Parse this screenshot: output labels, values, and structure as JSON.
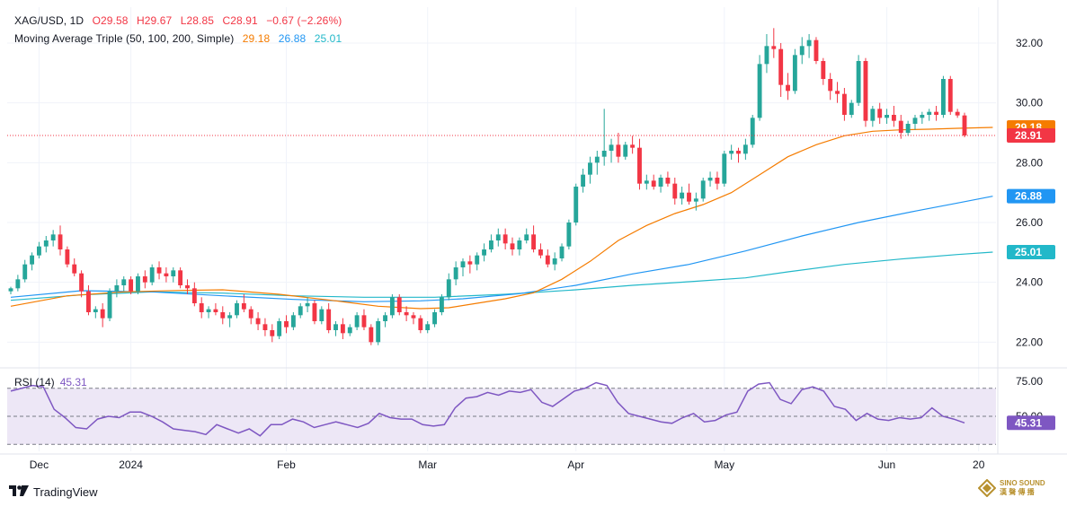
{
  "header": {
    "symbol": "XAG/USD, 1D",
    "open": "O29.58",
    "high": "H29.67",
    "low": "L28.85",
    "close": "C28.91",
    "change": "−0.67 (−2.26%)",
    "ma_title": "Moving Average Triple (50, 100, 200, Simple)",
    "ma50_value": "29.18",
    "ma100_value": "26.88",
    "ma200_value": "25.01"
  },
  "rsi": {
    "label": "RSI (14)",
    "value": "45.31"
  },
  "footer": {
    "brand": "TradingView",
    "watermark_line1": "SINO SOUND",
    "watermark_line2": "漢 聲 傳 播"
  },
  "colors": {
    "up": "#26a69a",
    "down": "#f23645",
    "ma50": "#f57c00",
    "ma100": "#2196f3",
    "ma200": "#22b8c9",
    "rsi": "#7e57c2",
    "rsi_band": "#ede7f6",
    "grid": "#f0f3fa",
    "text": "#131722"
  },
  "chart_data": {
    "type": "candlestick",
    "price_axis_ticks": [
      "32.00",
      "30.00",
      "28.00",
      "26.00",
      "24.00",
      "22.00"
    ],
    "ylim": [
      21.2,
      33.2
    ],
    "time_axis_labels": [
      {
        "label": "Dec",
        "index": 4
      },
      {
        "label": "2024",
        "index": 17
      },
      {
        "label": "Feb",
        "index": 39
      },
      {
        "label": "Mar",
        "index": 59
      },
      {
        "label": "Apr",
        "index": 80
      },
      {
        "label": "May",
        "index": 101
      },
      {
        "label": "Jun",
        "index": 124
      },
      {
        "label": "20",
        "index": 137
      }
    ],
    "price_badges": [
      {
        "name": "ma50",
        "value": 29.18,
        "label": "29.18"
      },
      {
        "name": "last",
        "value": 28.91,
        "label": "28.91"
      },
      {
        "name": "ma100",
        "value": 26.88,
        "label": "26.88"
      },
      {
        "name": "ma200",
        "value": 25.01,
        "label": "25.01"
      }
    ],
    "last_price": 28.91,
    "candles": [
      [
        23.7,
        23.85,
        23.6,
        23.8
      ],
      [
        23.8,
        24.25,
        23.7,
        24.1
      ],
      [
        24.1,
        24.75,
        24.0,
        24.6
      ],
      [
        24.6,
        25.0,
        24.4,
        24.9
      ],
      [
        24.9,
        25.35,
        24.8,
        25.2
      ],
      [
        25.2,
        25.55,
        25.0,
        25.4
      ],
      [
        25.4,
        25.75,
        25.2,
        25.6
      ],
      [
        25.6,
        25.9,
        24.9,
        25.1
      ],
      [
        25.1,
        25.2,
        24.5,
        24.6
      ],
      [
        24.6,
        24.8,
        24.2,
        24.3
      ],
      [
        24.3,
        24.4,
        23.5,
        23.7
      ],
      [
        23.7,
        23.9,
        22.9,
        23.0
      ],
      [
        23.0,
        23.2,
        22.8,
        23.1
      ],
      [
        23.1,
        23.3,
        22.5,
        22.8
      ],
      [
        22.8,
        23.8,
        22.7,
        23.7
      ],
      [
        23.7,
        24.1,
        23.5,
        23.9
      ],
      [
        23.9,
        24.2,
        23.7,
        24.1
      ],
      [
        24.1,
        24.2,
        23.6,
        23.7
      ],
      [
        23.7,
        24.3,
        23.6,
        24.2
      ],
      [
        24.2,
        24.4,
        23.8,
        24.0
      ],
      [
        24.0,
        24.6,
        23.9,
        24.5
      ],
      [
        24.5,
        24.7,
        24.1,
        24.3
      ],
      [
        24.3,
        24.5,
        24.0,
        24.2
      ],
      [
        24.2,
        24.5,
        24.0,
        24.4
      ],
      [
        24.4,
        24.5,
        23.8,
        23.9
      ],
      [
        23.9,
        24.1,
        23.6,
        23.8
      ],
      [
        23.8,
        24.0,
        23.2,
        23.3
      ],
      [
        23.3,
        23.5,
        22.8,
        23.0
      ],
      [
        23.0,
        23.2,
        22.8,
        23.1
      ],
      [
        23.1,
        23.3,
        22.9,
        23.0
      ],
      [
        23.0,
        23.2,
        22.6,
        22.8
      ],
      [
        22.8,
        23.0,
        22.5,
        22.9
      ],
      [
        22.9,
        23.4,
        22.8,
        23.3
      ],
      [
        23.3,
        23.6,
        23.0,
        23.1
      ],
      [
        23.1,
        23.2,
        22.6,
        22.8
      ],
      [
        22.8,
        23.0,
        22.4,
        22.6
      ],
      [
        22.6,
        22.8,
        22.2,
        22.4
      ],
      [
        22.4,
        22.6,
        22.0,
        22.2
      ],
      [
        22.2,
        22.8,
        22.1,
        22.7
      ],
      [
        22.7,
        22.9,
        22.3,
        22.5
      ],
      [
        22.5,
        23.0,
        22.4,
        22.9
      ],
      [
        22.9,
        23.3,
        22.8,
        23.2
      ],
      [
        23.2,
        23.5,
        23.0,
        23.3
      ],
      [
        23.3,
        23.4,
        22.6,
        22.7
      ],
      [
        22.7,
        23.2,
        22.6,
        23.1
      ],
      [
        23.1,
        23.3,
        22.3,
        22.4
      ],
      [
        22.4,
        22.7,
        22.2,
        22.6
      ],
      [
        22.6,
        22.8,
        22.1,
        22.3
      ],
      [
        22.3,
        22.6,
        22.2,
        22.5
      ],
      [
        22.5,
        23.0,
        22.4,
        22.9
      ],
      [
        22.9,
        23.1,
        22.4,
        22.5
      ],
      [
        22.5,
        22.6,
        21.9,
        22.0
      ],
      [
        22.0,
        22.8,
        21.9,
        22.7
      ],
      [
        22.7,
        23.0,
        22.5,
        22.9
      ],
      [
        22.9,
        23.6,
        22.8,
        23.5
      ],
      [
        23.5,
        23.6,
        22.9,
        23.0
      ],
      [
        23.0,
        23.2,
        22.7,
        22.9
      ],
      [
        22.9,
        23.0,
        22.6,
        22.8
      ],
      [
        22.8,
        22.9,
        22.3,
        22.4
      ],
      [
        22.4,
        22.7,
        22.3,
        22.6
      ],
      [
        22.6,
        23.1,
        22.5,
        23.0
      ],
      [
        23.0,
        23.6,
        22.9,
        23.5
      ],
      [
        23.5,
        24.3,
        23.4,
        24.1
      ],
      [
        24.1,
        24.7,
        23.9,
        24.5
      ],
      [
        24.5,
        24.8,
        24.2,
        24.7
      ],
      [
        24.7,
        24.9,
        24.3,
        24.6
      ],
      [
        24.6,
        25.0,
        24.4,
        24.9
      ],
      [
        24.9,
        25.3,
        24.7,
        25.1
      ],
      [
        25.1,
        25.6,
        25.0,
        25.4
      ],
      [
        25.4,
        25.8,
        25.2,
        25.6
      ],
      [
        25.6,
        25.8,
        25.1,
        25.3
      ],
      [
        25.3,
        25.5,
        24.9,
        25.1
      ],
      [
        25.1,
        25.5,
        24.9,
        25.4
      ],
      [
        25.4,
        25.8,
        25.3,
        25.6
      ],
      [
        25.6,
        25.9,
        25.0,
        25.1
      ],
      [
        25.1,
        25.3,
        24.8,
        24.9
      ],
      [
        24.9,
        25.1,
        24.5,
        24.6
      ],
      [
        24.6,
        25.0,
        24.4,
        24.8
      ],
      [
        24.8,
        25.3,
        24.7,
        25.2
      ],
      [
        25.2,
        26.1,
        25.1,
        26.0
      ],
      [
        26.0,
        27.3,
        25.9,
        27.2
      ],
      [
        27.2,
        27.8,
        27.0,
        27.6
      ],
      [
        27.6,
        28.2,
        27.3,
        28.0
      ],
      [
        28.0,
        28.4,
        27.6,
        28.2
      ],
      [
        28.2,
        29.8,
        27.9,
        28.4
      ],
      [
        28.4,
        28.8,
        28.0,
        28.6
      ],
      [
        28.6,
        29.0,
        28.0,
        28.2
      ],
      [
        28.2,
        28.7,
        28.1,
        28.6
      ],
      [
        28.6,
        28.9,
        28.3,
        28.5
      ],
      [
        28.5,
        28.8,
        27.1,
        27.3
      ],
      [
        27.3,
        27.6,
        27.1,
        27.4
      ],
      [
        27.4,
        27.6,
        27.1,
        27.2
      ],
      [
        27.2,
        27.6,
        27.0,
        27.5
      ],
      [
        27.5,
        27.7,
        27.2,
        27.3
      ],
      [
        27.3,
        27.5,
        26.6,
        26.8
      ],
      [
        26.8,
        27.2,
        26.6,
        27.0
      ],
      [
        27.0,
        27.3,
        26.6,
        26.7
      ],
      [
        26.7,
        27.0,
        26.4,
        26.8
      ],
      [
        26.8,
        27.5,
        26.7,
        27.4
      ],
      [
        27.4,
        27.7,
        27.2,
        27.5
      ],
      [
        27.5,
        27.7,
        27.1,
        27.3
      ],
      [
        27.3,
        28.4,
        27.2,
        28.3
      ],
      [
        28.3,
        28.6,
        28.1,
        28.4
      ],
      [
        28.4,
        28.5,
        28.0,
        28.3
      ],
      [
        28.3,
        28.8,
        28.1,
        28.6
      ],
      [
        28.6,
        29.6,
        28.5,
        29.5
      ],
      [
        29.5,
        31.6,
        29.4,
        31.3
      ],
      [
        31.3,
        32.3,
        31.0,
        31.9
      ],
      [
        31.9,
        32.5,
        31.5,
        31.8
      ],
      [
        31.8,
        32.0,
        30.2,
        30.6
      ],
      [
        30.6,
        31.0,
        30.1,
        30.4
      ],
      [
        30.4,
        31.8,
        30.3,
        31.6
      ],
      [
        31.6,
        32.2,
        31.3,
        31.9
      ],
      [
        31.9,
        32.3,
        31.5,
        32.1
      ],
      [
        32.1,
        32.2,
        31.3,
        31.4
      ],
      [
        31.4,
        31.5,
        30.6,
        30.8
      ],
      [
        30.8,
        31.0,
        30.1,
        30.4
      ],
      [
        30.4,
        30.7,
        30.0,
        30.3
      ],
      [
        30.3,
        30.5,
        29.4,
        29.6
      ],
      [
        29.6,
        30.1,
        29.5,
        30.0
      ],
      [
        30.0,
        31.6,
        29.9,
        31.4
      ],
      [
        31.4,
        31.5,
        29.2,
        29.4
      ],
      [
        29.4,
        29.9,
        29.2,
        29.8
      ],
      [
        29.8,
        30.0,
        29.3,
        29.5
      ],
      [
        29.5,
        29.8,
        29.3,
        29.6
      ],
      [
        29.6,
        29.9,
        29.2,
        29.4
      ],
      [
        29.4,
        29.6,
        28.8,
        29.0
      ],
      [
        29.0,
        29.4,
        28.9,
        29.3
      ],
      [
        29.3,
        29.6,
        29.1,
        29.5
      ],
      [
        29.5,
        29.7,
        29.3,
        29.6
      ],
      [
        29.6,
        29.8,
        29.4,
        29.7
      ],
      [
        29.7,
        29.9,
        29.4,
        29.6
      ],
      [
        29.6,
        30.9,
        29.5,
        30.8
      ],
      [
        30.8,
        30.9,
        29.6,
        29.7
      ],
      [
        29.7,
        29.8,
        29.5,
        29.58
      ],
      [
        29.58,
        29.67,
        28.85,
        28.91
      ]
    ],
    "ma50": [
      [
        0,
        23.2
      ],
      [
        8,
        23.55
      ],
      [
        16,
        23.68
      ],
      [
        24,
        23.73
      ],
      [
        30,
        23.75
      ],
      [
        38,
        23.6
      ],
      [
        46,
        23.38
      ],
      [
        52,
        23.2
      ],
      [
        58,
        23.12
      ],
      [
        62,
        23.15
      ],
      [
        66,
        23.3
      ],
      [
        70,
        23.45
      ],
      [
        74,
        23.65
      ],
      [
        78,
        24.1
      ],
      [
        82,
        24.7
      ],
      [
        86,
        25.4
      ],
      [
        90,
        25.9
      ],
      [
        94,
        26.3
      ],
      [
        98,
        26.6
      ],
      [
        102,
        27.0
      ],
      [
        106,
        27.6
      ],
      [
        110,
        28.2
      ],
      [
        114,
        28.6
      ],
      [
        118,
        28.9
      ],
      [
        122,
        29.05
      ],
      [
        126,
        29.1
      ],
      [
        130,
        29.12
      ],
      [
        134,
        29.15
      ],
      [
        139,
        29.18
      ]
    ],
    "ma100": [
      [
        0,
        23.5
      ],
      [
        10,
        23.72
      ],
      [
        20,
        23.68
      ],
      [
        30,
        23.55
      ],
      [
        40,
        23.43
      ],
      [
        50,
        23.35
      ],
      [
        58,
        23.38
      ],
      [
        64,
        23.45
      ],
      [
        72,
        23.62
      ],
      [
        80,
        23.9
      ],
      [
        88,
        24.28
      ],
      [
        96,
        24.6
      ],
      [
        104,
        25.05
      ],
      [
        112,
        25.55
      ],
      [
        120,
        26.0
      ],
      [
        128,
        26.38
      ],
      [
        134,
        26.65
      ],
      [
        139,
        26.88
      ]
    ],
    "ma200": [
      [
        0,
        23.4
      ],
      [
        10,
        23.58
      ],
      [
        20,
        23.68
      ],
      [
        30,
        23.64
      ],
      [
        40,
        23.55
      ],
      [
        50,
        23.5
      ],
      [
        60,
        23.5
      ],
      [
        70,
        23.6
      ],
      [
        80,
        23.75
      ],
      [
        88,
        23.9
      ],
      [
        96,
        24.02
      ],
      [
        104,
        24.15
      ],
      [
        110,
        24.35
      ],
      [
        118,
        24.6
      ],
      [
        126,
        24.78
      ],
      [
        134,
        24.93
      ],
      [
        139,
        25.01
      ]
    ],
    "rsi_axis_ticks": [
      "75.00",
      "50.00"
    ],
    "rsi_levels": [
      70,
      50,
      30
    ],
    "rsi_ylim": [
      25,
      82
    ],
    "rsi_series": [
      [
        0,
        68
      ],
      [
        4,
        72
      ],
      [
        6,
        71
      ],
      [
        8,
        55
      ],
      [
        10,
        49
      ],
      [
        12,
        42
      ],
      [
        14,
        41
      ],
      [
        16,
        48
      ],
      [
        18,
        50
      ],
      [
        20,
        49
      ],
      [
        22,
        53
      ],
      [
        24,
        53
      ],
      [
        26,
        50
      ],
      [
        28,
        46
      ],
      [
        30,
        41
      ],
      [
        32,
        40
      ],
      [
        34,
        39
      ],
      [
        36,
        37
      ],
      [
        38,
        44
      ],
      [
        40,
        41
      ],
      [
        42,
        38
      ],
      [
        44,
        41
      ],
      [
        46,
        36
      ],
      [
        48,
        44
      ],
      [
        50,
        44
      ],
      [
        52,
        48
      ],
      [
        54,
        46
      ],
      [
        56,
        42
      ],
      [
        58,
        44
      ],
      [
        60,
        46
      ],
      [
        62,
        44
      ],
      [
        64,
        42
      ],
      [
        66,
        45
      ],
      [
        68,
        52
      ],
      [
        70,
        49
      ],
      [
        72,
        48
      ],
      [
        74,
        48
      ],
      [
        76,
        44
      ],
      [
        78,
        43
      ],
      [
        80,
        44
      ],
      [
        82,
        56
      ],
      [
        84,
        63
      ],
      [
        86,
        64
      ],
      [
        88,
        67
      ],
      [
        90,
        65
      ],
      [
        92,
        68
      ],
      [
        94,
        67
      ],
      [
        96,
        69
      ],
      [
        98,
        60
      ],
      [
        100,
        57
      ],
      [
        104,
        68
      ],
      [
        106,
        70
      ],
      [
        108,
        74
      ],
      [
        110,
        72
      ],
      [
        112,
        60
      ],
      [
        114,
        52
      ],
      [
        116,
        50
      ],
      [
        118,
        48
      ],
      [
        120,
        46
      ],
      [
        122,
        45
      ],
      [
        124,
        49
      ],
      [
        126,
        52
      ],
      [
        128,
        46
      ],
      [
        130,
        47
      ],
      [
        132,
        51
      ],
      [
        134,
        53
      ],
      [
        136,
        68
      ],
      [
        138,
        73
      ],
      [
        140,
        74
      ],
      [
        142,
        62
      ],
      [
        144,
        59
      ],
      [
        146,
        69
      ],
      [
        148,
        71
      ],
      [
        150,
        68
      ],
      [
        152,
        57
      ],
      [
        154,
        55
      ],
      [
        156,
        47
      ],
      [
        158,
        52
      ],
      [
        160,
        48
      ],
      [
        162,
        47
      ],
      [
        164,
        49
      ],
      [
        166,
        48
      ],
      [
        168,
        49
      ],
      [
        170,
        56
      ],
      [
        172,
        50
      ],
      [
        174,
        48
      ],
      [
        176,
        45.31
      ]
    ]
  }
}
